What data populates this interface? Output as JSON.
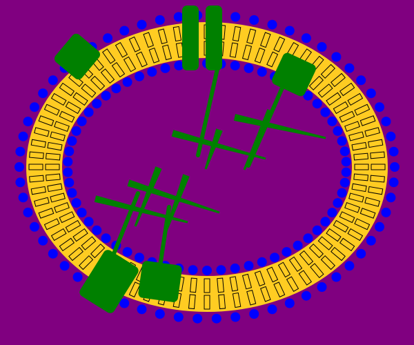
{
  "diagram": {
    "kind": "cell-membrane",
    "colors": {
      "background": "#800080",
      "membrane": "#FFCC22",
      "lipid_head": "#0000FF",
      "lipid_tail": "#000000",
      "protein": "#008000"
    },
    "proteins": [
      {
        "name": "channel-protein",
        "shape": "double-bar",
        "attached_fibers": 1
      },
      {
        "name": "receptor-protein-top-left",
        "shape": "rounded-square",
        "attached_fibers": 0
      },
      {
        "name": "receptor-protein-top-right",
        "shape": "rounded-square",
        "attached_fibers": 1
      },
      {
        "name": "anchor-protein-bottom-left",
        "shape": "rounded-square",
        "attached_fibers": 1
      },
      {
        "name": "anchor-protein-bottom-center",
        "shape": "rounded-square",
        "attached_fibers": 1
      }
    ],
    "cytoskeleton": {
      "color": "#008000",
      "filament_groups": 2
    }
  }
}
